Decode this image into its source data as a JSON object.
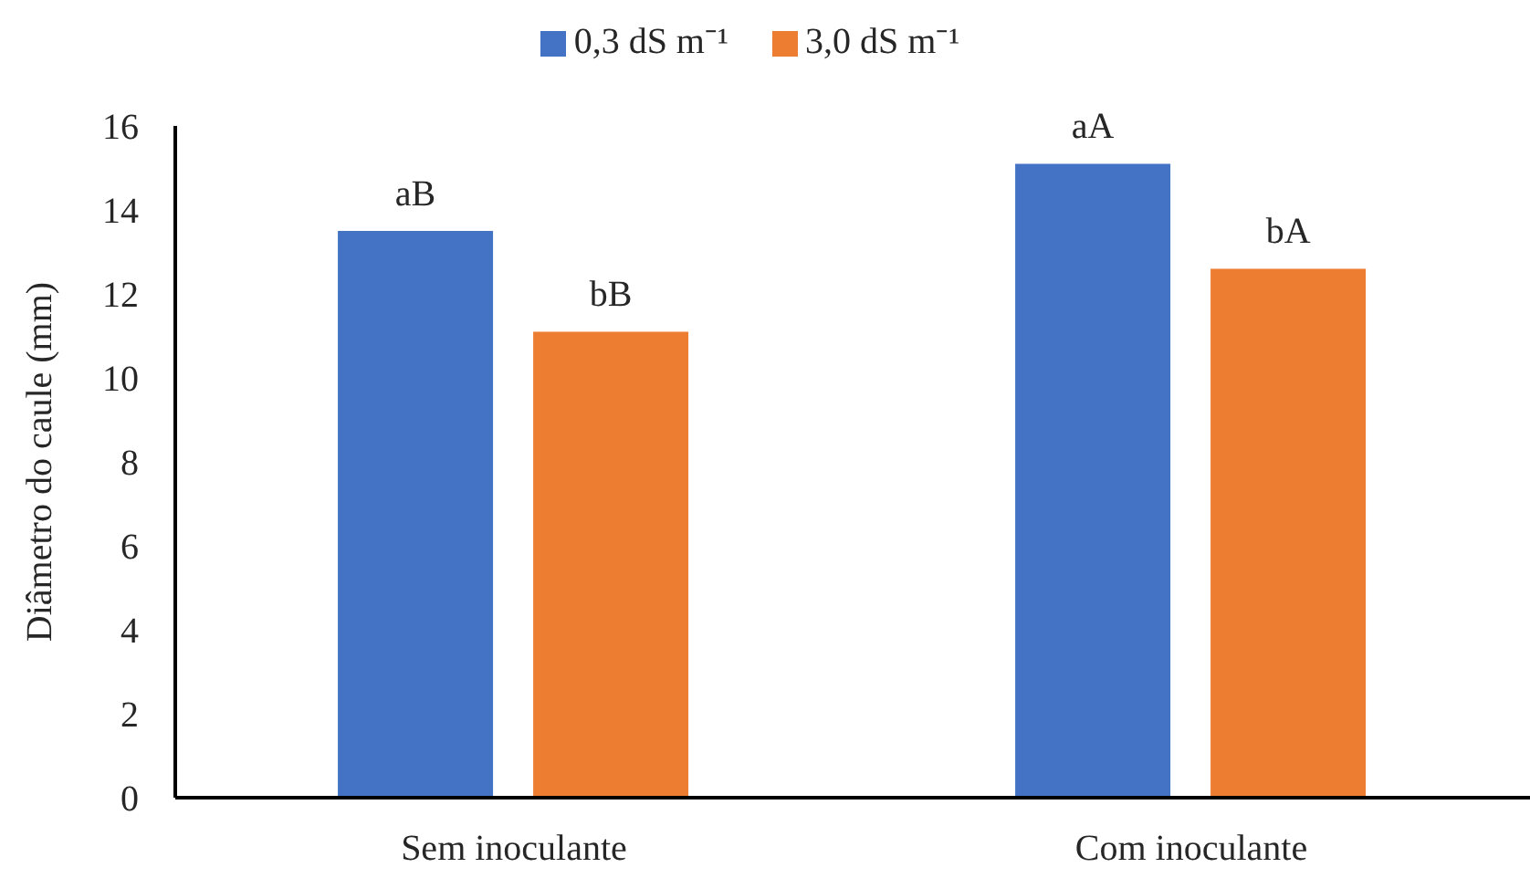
{
  "chart_data": {
    "type": "bar",
    "ylabel": "Diâmetro do caule (mm)",
    "categories": [
      "Sem inoculante",
      "Com inoculante"
    ],
    "series": [
      {
        "name": "0,3 dS m⁻¹",
        "color": "#4472c4",
        "values": [
          13.5,
          15.1
        ],
        "value_labels": [
          "aB",
          "aA"
        ]
      },
      {
        "name": "3,0 dS m⁻¹",
        "color": "#ed7d31",
        "values": [
          11.1,
          12.6
        ],
        "value_labels": [
          "bB",
          "bA"
        ]
      }
    ],
    "ylim": [
      0,
      16
    ],
    "yticks": [
      0,
      2,
      4,
      6,
      8,
      10,
      12,
      14,
      16
    ],
    "legend": "top"
  }
}
